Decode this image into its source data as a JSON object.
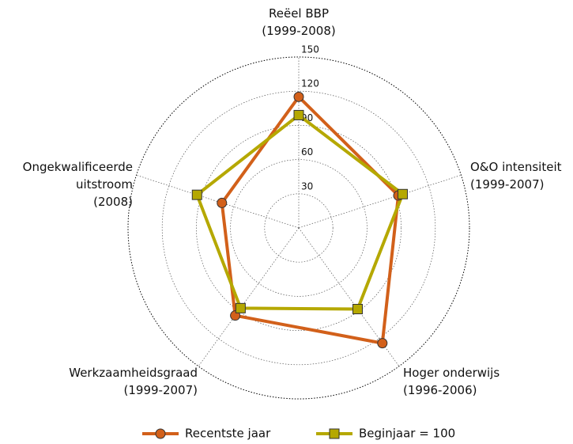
{
  "chart_data": {
    "type": "radar",
    "categories": [
      "Reëel BBP\n(1999-2008)",
      "O&O intensiteit\n(1999-2007)",
      "Hoger onderwijs\n(1996-2006)",
      "Werkzaamheidsgraad\n(1999-2007)",
      "Ongekwalificeerde\nuitstroom\n(2008)"
    ],
    "series": [
      {
        "name": "Recentste jaar",
        "color": "#d2601a",
        "marker": "circle",
        "values": [
          115,
          92,
          125,
          95,
          71
        ]
      },
      {
        "name": "Beginjaar = 100",
        "color": "#b5a800",
        "marker": "square",
        "values": [
          99,
          96,
          88,
          87,
          94
        ]
      }
    ],
    "ylim": [
      0,
      150
    ],
    "yticks": [
      30,
      60,
      90,
      120,
      150
    ],
    "grid": true,
    "legend": "bottom"
  }
}
